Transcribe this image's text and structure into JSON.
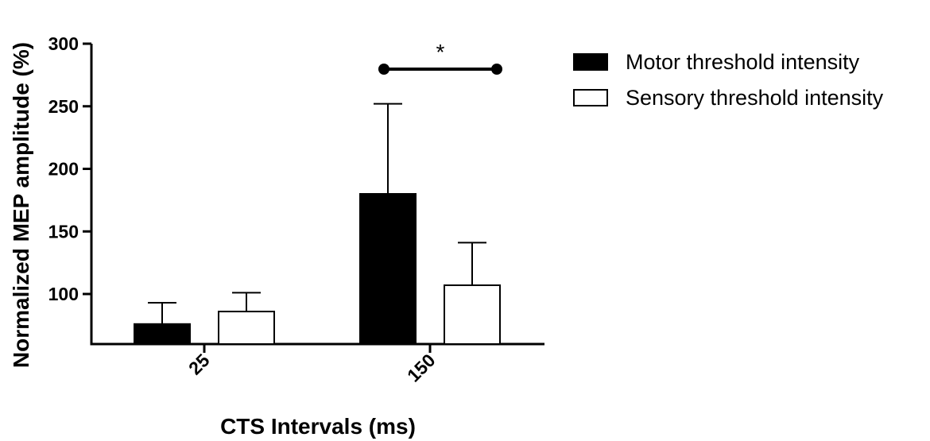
{
  "chart_data": {
    "type": "bar",
    "categories": [
      "25",
      "150"
    ],
    "series": [
      {
        "name": "Motor threshold intensity",
        "fill": "#000000",
        "values": [
          76,
          180
        ],
        "error_upper": [
          93,
          252
        ]
      },
      {
        "name": "Sensory threshold intensity",
        "fill": "#ffffff",
        "values": [
          86,
          107
        ],
        "error_upper": [
          101,
          141
        ]
      }
    ],
    "title": "",
    "xlabel": "CTS Intervals (ms)",
    "ylabel": "Normalized  MEP amplitude (%)",
    "ylim": [
      60,
      300
    ],
    "yticks": [
      100,
      150,
      200,
      250,
      300
    ],
    "significance": {
      "label": "*",
      "category": "150",
      "y": 280
    },
    "legend_placement": "top-right",
    "grid": false
  }
}
